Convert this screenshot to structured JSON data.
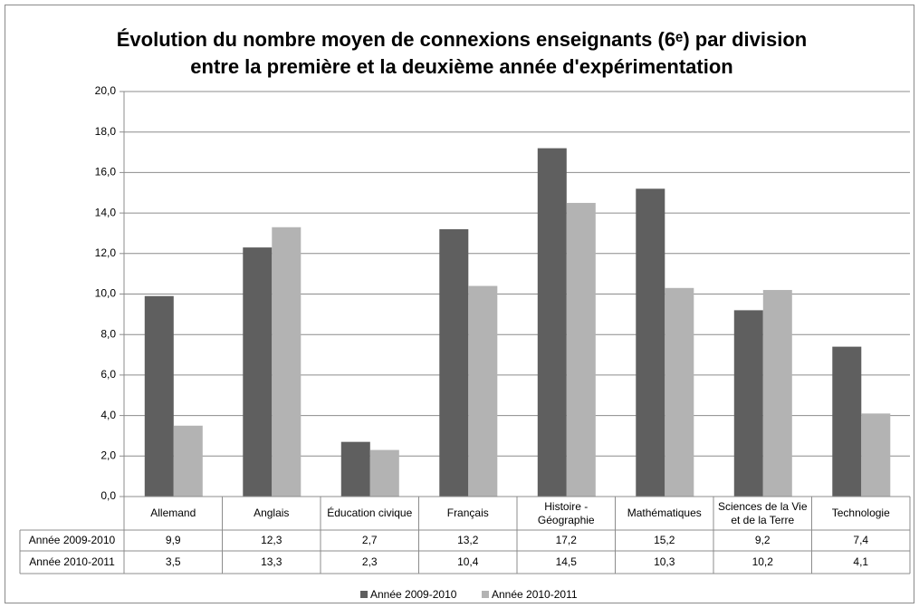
{
  "chart_data": {
    "type": "bar",
    "title": [
      "Évolution du nombre moyen de connexions enseignants (6ᵉ) par division",
      "entre la première et la deuxième année d'expérimentation"
    ],
    "categories": [
      "Allemand",
      "Anglais",
      "Éducation civique",
      "Français",
      "Histoire - Géographie",
      "Mathématiques",
      "Sciences de la Vie et de la Terre",
      "Technologie"
    ],
    "series": [
      {
        "name": "Année 2009-2010",
        "color": "#5f5f5f",
        "values": [
          9.9,
          12.3,
          2.7,
          13.2,
          17.2,
          15.2,
          9.2,
          7.4
        ],
        "value_labels": [
          "9,9",
          "12,3",
          "2,7",
          "13,2",
          "17,2",
          "15,2",
          "9,2",
          "7,4"
        ]
      },
      {
        "name": "Année 2010-2011",
        "color": "#b3b3b3",
        "values": [
          3.5,
          13.3,
          2.3,
          10.4,
          14.5,
          10.3,
          10.2,
          4.1
        ],
        "value_labels": [
          "3,5",
          "13,3",
          "2,3",
          "10,4",
          "14,5",
          "10,3",
          "10,2",
          "4,1"
        ]
      }
    ],
    "ylim": [
      0,
      20
    ],
    "yticks": [
      {
        "value": 0,
        "label": "0,0"
      },
      {
        "value": 2,
        "label": "2,0"
      },
      {
        "value": 4,
        "label": "4,0"
      },
      {
        "value": 6,
        "label": "6,0"
      },
      {
        "value": 8,
        "label": "8,0"
      },
      {
        "value": 10,
        "label": "10,0"
      },
      {
        "value": 12,
        "label": "12,0"
      },
      {
        "value": 14,
        "label": "14,0"
      },
      {
        "value": 16,
        "label": "16,0"
      },
      {
        "value": 18,
        "label": "18,0"
      },
      {
        "value": 20,
        "label": "20,0"
      }
    ],
    "grid": true,
    "legend": "bottom"
  }
}
